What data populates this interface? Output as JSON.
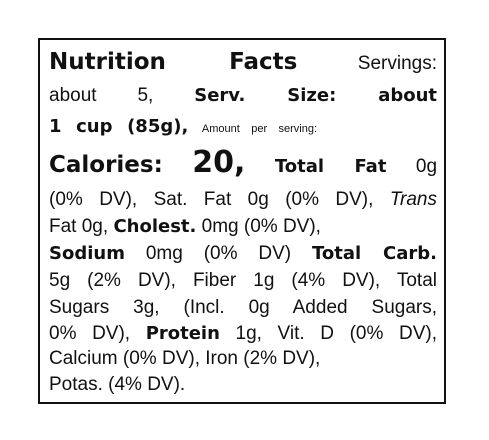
{
  "label": {
    "lines": [
      [
        "Nutrition Facts",
        "Servings:"
      ],
      [
        "about 5,",
        "Serv. Size: about"
      ],
      [
        "1 cup (85g),",
        "Amount per serving:"
      ],
      [
        "Calories:",
        "20,",
        "Total Fat",
        "0g"
      ],
      [
        "(0% DV), Sat. Fat 0g (0% DV),",
        "Trans"
      ],
      [
        "Fat 0g,",
        "Cholest.",
        "0mg (0% DV),"
      ],
      [
        "Sodium",
        "0mg (0% DV)",
        "Total Carb."
      ],
      [
        "5g (2% DV), Fiber 1g (4% DV), Total"
      ],
      [
        "Sugars 3g, (Incl. 0g Added Sugars,"
      ],
      [
        "0% DV),",
        "Protein",
        "1g, Vit. D (0% DV),"
      ],
      [
        "Calcium (0% DV), Iron (2% DV),"
      ],
      [
        "Potas. (4% DV)."
      ]
    ]
  }
}
